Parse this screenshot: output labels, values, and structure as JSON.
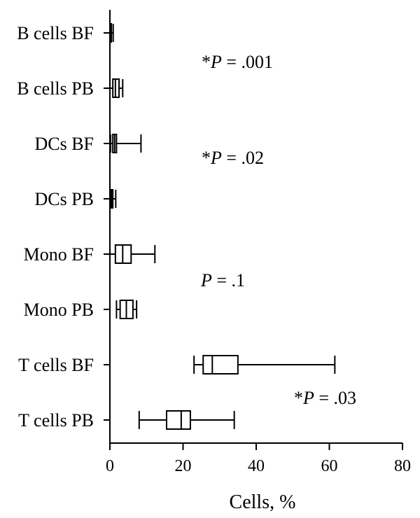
{
  "chart_data": {
    "type": "box",
    "orientation": "horizontal",
    "title": "",
    "xlabel": "Cells, %",
    "ylabel": "",
    "xlim": [
      0,
      80
    ],
    "xticks": [
      "0",
      "20",
      "40",
      "60",
      "80"
    ],
    "grid": false,
    "legend": "none",
    "categories": [
      {
        "label": "B cells BF",
        "min": 0,
        "q1": 0.1,
        "median": 0.2,
        "q3": 0.4,
        "max": 0.9
      },
      {
        "label": "B cells PB",
        "min": 0,
        "q1": 0.8,
        "median": 1.5,
        "q3": 2.5,
        "max": 3.5
      },
      {
        "label": "DCs BF",
        "min": 0.2,
        "q1": 0.8,
        "median": 1.3,
        "q3": 1.8,
        "max": 8.5
      },
      {
        "label": "DCs PB",
        "min": 0,
        "q1": 0.2,
        "median": 0.5,
        "q3": 0.8,
        "max": 1.6
      },
      {
        "label": "Mono BF",
        "min": 0,
        "q1": 1.5,
        "median": 3.5,
        "q3": 5.8,
        "max": 12.3
      },
      {
        "label": "Mono PB",
        "min": 1.8,
        "q1": 2.8,
        "median": 4.5,
        "q3": 6.3,
        "max": 7.3
      },
      {
        "label": "T cells BF",
        "min": 23,
        "q1": 25.5,
        "median": 28,
        "q3": 35,
        "max": 61.5
      },
      {
        "label": "T cells PB",
        "min": 8,
        "q1": 15.5,
        "median": 19.5,
        "q3": 22,
        "max": 34
      }
    ],
    "annotations": [
      {
        "prefix": "*",
        "italic": "P",
        "suffix": " = .001"
      },
      {
        "prefix": "*",
        "italic": "P",
        "suffix": " = .02"
      },
      {
        "prefix": "",
        "italic": "P",
        "suffix": " = .1"
      },
      {
        "prefix": "*",
        "italic": "P",
        "suffix": " = .03"
      }
    ]
  }
}
